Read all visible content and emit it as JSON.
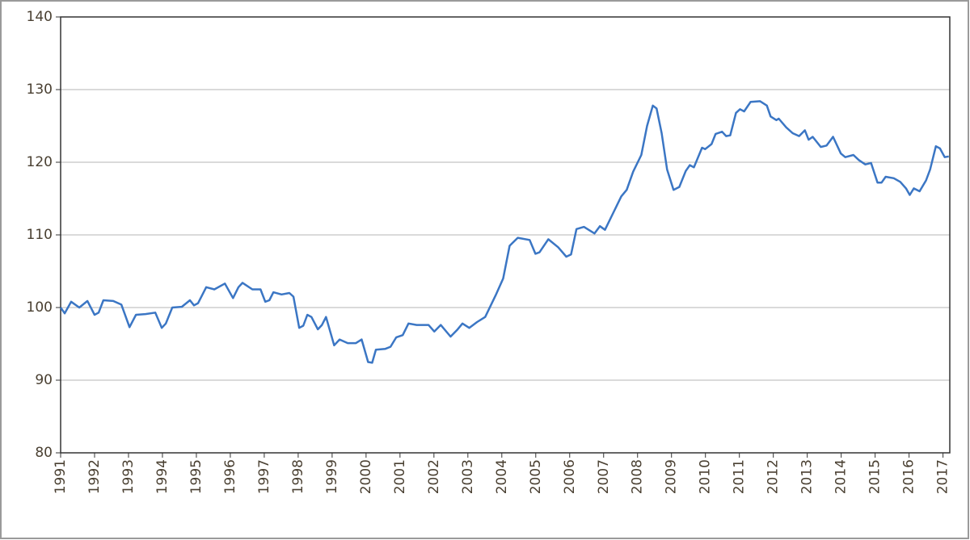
{
  "chart_data": {
    "type": "line",
    "color": "#3b76c4",
    "grid": true,
    "xlim": [
      1991,
      2017.2
    ],
    "xticks": [
      1991,
      1992,
      1993,
      1994,
      1995,
      1996,
      1997,
      1998,
      1999,
      2000,
      2001,
      2002,
      2003,
      2004,
      2005,
      2006,
      2007,
      2008,
      2009,
      2010,
      2011,
      2012,
      2013,
      2014,
      2015,
      2016,
      2017
    ],
    "ylim": [
      80,
      140
    ],
    "yticks": [
      80,
      90,
      100,
      110,
      120,
      130,
      140
    ],
    "x": [
      1991.0,
      1991.12,
      1991.31,
      1991.55,
      1991.79,
      1992.0,
      1992.12,
      1992.26,
      1992.55,
      1992.79,
      1993.03,
      1993.22,
      1993.5,
      1993.79,
      1993.98,
      1994.1,
      1994.29,
      1994.57,
      1994.81,
      1994.93,
      1995.05,
      1995.29,
      1995.53,
      1995.84,
      1996.08,
      1996.24,
      1996.36,
      1996.65,
      1996.89,
      1997.03,
      1997.15,
      1997.27,
      1997.51,
      1997.74,
      1997.86,
      1998.03,
      1998.15,
      1998.27,
      1998.39,
      1998.58,
      1998.7,
      1998.82,
      1999.06,
      1999.22,
      1999.46,
      1999.7,
      1999.87,
      2000.06,
      2000.18,
      2000.29,
      2000.56,
      2000.72,
      2000.89,
      2001.08,
      2001.25,
      2001.49,
      2001.84,
      2002.01,
      2002.2,
      2002.49,
      2002.68,
      2002.84,
      2003.04,
      2003.27,
      2003.51,
      2003.82,
      2004.04,
      2004.23,
      2004.47,
      2004.82,
      2004.99,
      2005.11,
      2005.37,
      2005.66,
      2005.9,
      2006.04,
      2006.2,
      2006.42,
      2006.73,
      2006.89,
      2007.04,
      2007.28,
      2007.52,
      2007.68,
      2007.87,
      2008.11,
      2008.28,
      2008.45,
      2008.56,
      2008.71,
      2008.87,
      2009.06,
      2009.23,
      2009.42,
      2009.54,
      2009.66,
      2009.9,
      2009.99,
      2010.18,
      2010.3,
      2010.49,
      2010.61,
      2010.73,
      2010.9,
      2011.02,
      2011.14,
      2011.33,
      2011.61,
      2011.81,
      2011.92,
      2012.09,
      2012.16,
      2012.38,
      2012.57,
      2012.76,
      2012.93,
      2013.04,
      2013.16,
      2013.4,
      2013.57,
      2013.76,
      2013.99,
      2014.12,
      2014.36,
      2014.52,
      2014.71,
      2014.88,
      2015.07,
      2015.19,
      2015.31,
      2015.55,
      2015.74,
      2015.91,
      2016.02,
      2016.14,
      2016.31,
      2016.5,
      2016.62,
      2016.79,
      2016.91,
      2017.05,
      2017.17
    ],
    "values": [
      100,
      99.2,
      100.8,
      100,
      100.9,
      99,
      99.3,
      101,
      100.9,
      100.4,
      97.3,
      99,
      99.1,
      99.3,
      97.2,
      97.8,
      100,
      100.1,
      101,
      100.3,
      100.6,
      102.8,
      102.5,
      103.3,
      101.3,
      102.8,
      103.4,
      102.5,
      102.5,
      100.8,
      101,
      102.1,
      101.8,
      102,
      101.5,
      97.2,
      97.5,
      99,
      98.7,
      97,
      97.6,
      98.7,
      94.8,
      95.6,
      95.1,
      95.1,
      95.6,
      92.5,
      92.4,
      94.2,
      94.3,
      94.6,
      95.9,
      96.2,
      97.8,
      97.6,
      97.6,
      96.7,
      97.6,
      96,
      96.9,
      97.8,
      97.2,
      98,
      98.7,
      101.7,
      104,
      108.5,
      109.6,
      109.3,
      107.4,
      107.6,
      109.4,
      108.3,
      107,
      107.3,
      110.8,
      111.1,
      110.2,
      111.2,
      110.7,
      113,
      115.3,
      116.2,
      118.7,
      121,
      125,
      127.8,
      127.4,
      124,
      119,
      116.2,
      116.6,
      118.8,
      119.6,
      119.3,
      122,
      121.8,
      122.5,
      123.9,
      124.2,
      123.6,
      123.7,
      126.8,
      127.3,
      127,
      128.3,
      128.4,
      127.8,
      126.3,
      125.8,
      126,
      124.8,
      124,
      123.6,
      124.4,
      123.1,
      123.5,
      122.1,
      122.3,
      123.5,
      121.2,
      120.7,
      121,
      120.3,
      119.7,
      119.9,
      117.2,
      117.2,
      118,
      117.8,
      117.3,
      116.4,
      115.5,
      116.4,
      116,
      117.5,
      119,
      122.2,
      121.9,
      120.7,
      120.8
    ]
  }
}
